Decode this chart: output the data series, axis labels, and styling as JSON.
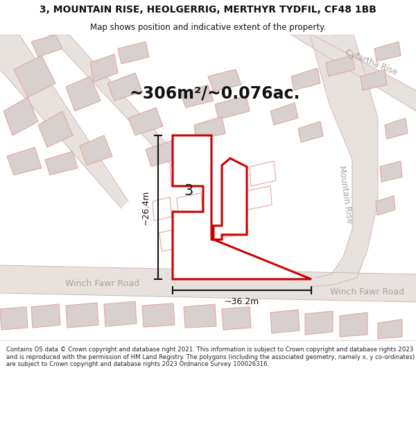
{
  "title_line1": "3, MOUNTAIN RISE, HEOLGERRIG, MERTHYR TYDFIL, CF48 1BB",
  "title_line2": "Map shows position and indicative extent of the property.",
  "area_text": "~306m²/~0.076ac.",
  "label_3": "3",
  "dim_height": "~26.4m",
  "dim_width": "~36.2m",
  "road_label_left": "Winch Fawr Road",
  "road_label_right": "Winch Fawr Road",
  "street_mountain": "Mountain Rise",
  "street_cyfartha": "Cyfartha Rise",
  "footer_text": "Contains OS data © Crown copyright and database right 2021. This information is subject to Crown copyright and database rights 2023 and is reproduced with the permission of HM Land Registry. The polygons (including the associated geometry, namely x, y co-ordinates) are subject to Crown copyright and database rights 2023 Ordnance Survey 100026316.",
  "map_bg": "#f5f2f0",
  "road_fill": "#e8e2df",
  "road_stroke": "#ccb8b4",
  "building_fill": "#d8d0ce",
  "building_stroke": "#c0b0ae",
  "road_outline_color": "#e0a8a0",
  "prop_fill": "#ffffff",
  "prop_stroke": "#cc0000",
  "dim_color": "#111111",
  "road_text_color": "#aaa098",
  "title_color": "#111111",
  "footer_color": "#222222",
  "title_sep_color": "#dddddd",
  "footer_sep_color": "#dddddd"
}
